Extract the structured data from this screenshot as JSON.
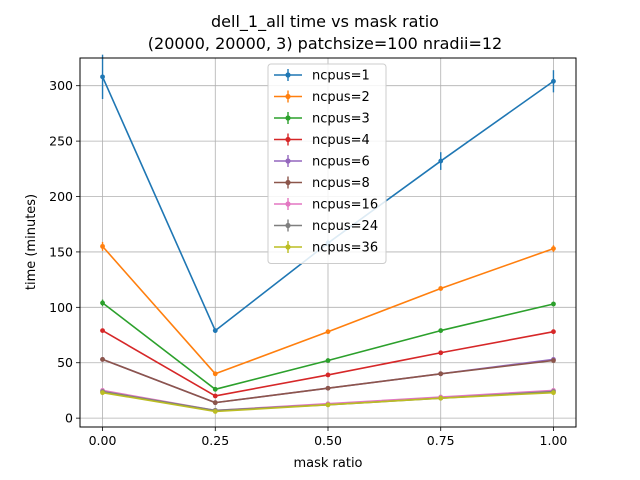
{
  "chart_data": {
    "type": "line",
    "title_line1": "dell_1_all time vs mask ratio",
    "title_line2": "(20000, 20000, 3) patchsize=100 nradii=12",
    "xlabel": "mask ratio",
    "ylabel": "time (minutes)",
    "x": [
      0.0,
      0.25,
      0.5,
      0.75,
      1.0
    ],
    "x_ticks": [
      0.0,
      0.25,
      0.5,
      0.75,
      1.0
    ],
    "x_tick_labels": [
      "0.00",
      "0.25",
      "0.50",
      "0.75",
      "1.00"
    ],
    "xlim": [
      -0.05,
      1.05
    ],
    "y_ticks": [
      0,
      50,
      100,
      150,
      200,
      250,
      300
    ],
    "y_tick_labels": [
      "0",
      "50",
      "100",
      "150",
      "200",
      "250",
      "300"
    ],
    "ylim": [
      -8,
      325
    ],
    "grid": true,
    "legend_position": "top-center",
    "series": [
      {
        "name": "ncpus=1",
        "color": "#1f77b4",
        "values": [
          308,
          79,
          158,
          232,
          304
        ],
        "errors": [
          20,
          2,
          3,
          8,
          10
        ]
      },
      {
        "name": "ncpus=2",
        "color": "#ff7f0e",
        "values": [
          155,
          40,
          78,
          117,
          153
        ],
        "errors": [
          4,
          1,
          2,
          2,
          3
        ]
      },
      {
        "name": "ncpus=3",
        "color": "#2ca02c",
        "values": [
          104,
          26,
          52,
          79,
          103
        ],
        "errors": [
          3,
          1,
          1,
          2,
          2
        ]
      },
      {
        "name": "ncpus=4",
        "color": "#d62728",
        "values": [
          79,
          20,
          39,
          59,
          78
        ],
        "errors": [
          1,
          1,
          1,
          1,
          1
        ]
      },
      {
        "name": "ncpus=6",
        "color": "#9467bd",
        "values": [
          53,
          14,
          27,
          40,
          53
        ],
        "errors": [
          1,
          1,
          1,
          1,
          1
        ]
      },
      {
        "name": "ncpus=8",
        "color": "#8c564b",
        "values": [
          53,
          14,
          27,
          40,
          52
        ],
        "errors": [
          1,
          1,
          1,
          1,
          1
        ]
      },
      {
        "name": "ncpus=16",
        "color": "#e377c2",
        "values": [
          25,
          7,
          13,
          19,
          25
        ],
        "errors": [
          1,
          0.5,
          0.5,
          0.5,
          1
        ]
      },
      {
        "name": "ncpus=24",
        "color": "#7f7f7f",
        "values": [
          24,
          7,
          12,
          18,
          24
        ],
        "errors": [
          1,
          0.5,
          0.5,
          0.5,
          1
        ]
      },
      {
        "name": "ncpus=36",
        "color": "#bcbd22",
        "values": [
          23,
          6,
          12,
          18,
          23
        ],
        "errors": [
          1,
          0.5,
          0.5,
          0.5,
          1
        ]
      }
    ]
  }
}
